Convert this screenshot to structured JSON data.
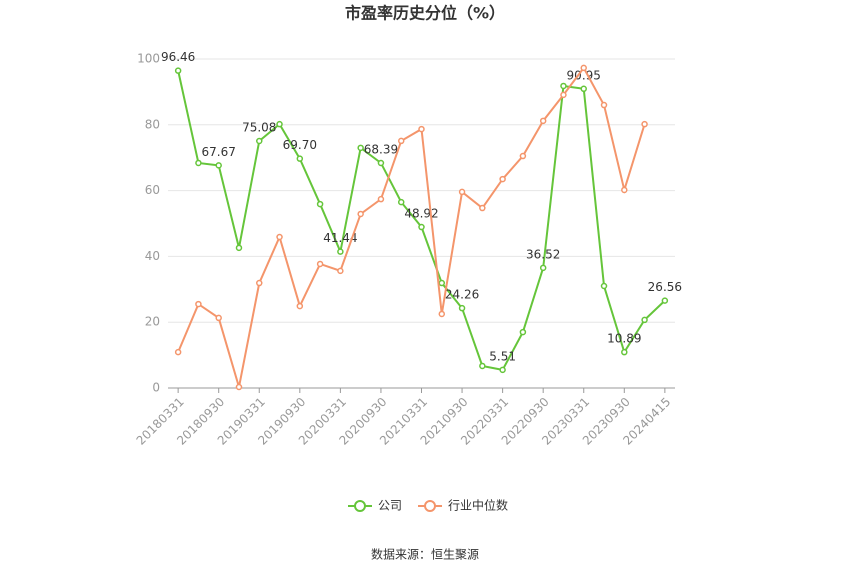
{
  "chart_data": {
    "type": "line",
    "title": "市盈率历史分位（%）",
    "categories": [
      "20180331",
      null,
      "20180930",
      null,
      "20190331",
      null,
      "20190930",
      null,
      "20200331",
      null,
      "20200930",
      null,
      "20210331",
      null,
      "20210930",
      null,
      "20220331",
      null,
      "20220930",
      null,
      "20230331",
      null,
      "20230930",
      null,
      "20240415"
    ],
    "series": [
      {
        "name": "公司",
        "color": "#65c53a",
        "values": [
          96.46,
          68.4,
          67.67,
          42.6,
          75.08,
          80.2,
          69.7,
          55.9,
          41.44,
          73.0,
          68.39,
          56.5,
          48.92,
          31.9,
          24.26,
          6.7,
          5.51,
          17.0,
          36.52,
          91.8,
          90.95,
          31.0,
          10.89,
          20.7,
          26.56
        ],
        "value_labels": [
          "96.46",
          null,
          "67.67",
          null,
          "75.08",
          null,
          "69.70",
          null,
          "41.44",
          null,
          "68.39",
          null,
          "48.92",
          null,
          "24.26",
          null,
          "5.51",
          null,
          "36.52",
          null,
          "90.95",
          null,
          "10.89",
          null,
          "26.56"
        ]
      },
      {
        "name": "行业中位数",
        "color": "#f4956b",
        "values": [
          10.9,
          25.5,
          21.3,
          0.3,
          31.9,
          45.9,
          24.9,
          37.7,
          35.6,
          52.9,
          57.4,
          75.1,
          78.7,
          22.5,
          59.6,
          54.7,
          63.5,
          70.5,
          81.2,
          89.1,
          97.3,
          86.0,
          60.2,
          80.2,
          null
        ]
      }
    ],
    "ylim": [
      0,
      100
    ],
    "yticks": [
      0,
      20,
      40,
      60,
      80,
      100
    ],
    "grid": true,
    "legend": "bottom",
    "source": "数据来源：恒生聚源"
  }
}
